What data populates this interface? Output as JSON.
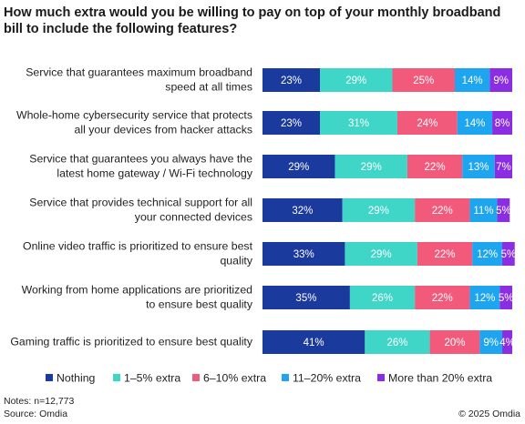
{
  "chart_data": {
    "type": "stacked_bar_horizontal",
    "title": [
      "How much extra would you be willing to pay on top of your monthly broadband",
      "bill to include the following features?"
    ],
    "categories": [
      [
        "Service that guarantees maximum broadband",
        "speed at all times"
      ],
      [
        "Whole-home cybersecurity service that protects",
        "all your devices from hacker attacks"
      ],
      [
        "Service that guarantees you always have the",
        "latest home gateway / Wi-Fi technology"
      ],
      [
        "Service that provides technical support for all",
        "your connected devices"
      ],
      [
        "Online video traffic is prioritized to ensure best",
        "quality"
      ],
      [
        "Working from home applications are prioritized",
        "to ensure best quality"
      ],
      [
        "Gaming traffic is prioritized to ensure best quality"
      ]
    ],
    "series": [
      {
        "name": "Nothing",
        "color": "#1b3a9e",
        "values": [
          23,
          23,
          29,
          32,
          33,
          35,
          41
        ],
        "value_labels": [
          "23%",
          "23%",
          "29%",
          "32%",
          "33%",
          "35%",
          "41%"
        ]
      },
      {
        "name": "1–5% extra",
        "color": "#3fd6c8",
        "values": [
          29,
          31,
          29,
          29,
          29,
          26,
          26
        ],
        "value_labels": [
          "29%",
          "31%",
          "29%",
          "29%",
          "29%",
          "26%",
          "26%"
        ]
      },
      {
        "name": "6–10% extra",
        "color": "#f15a7b",
        "values": [
          25,
          24,
          22,
          22,
          22,
          22,
          20
        ],
        "value_labels": [
          "25%",
          "24%",
          "22%",
          "22%",
          "22%",
          "22%",
          "20%"
        ]
      },
      {
        "name": "11–20% extra",
        "color": "#1ea5f0",
        "values": [
          14,
          14,
          13,
          11,
          12,
          12,
          9
        ],
        "value_labels": [
          "14%",
          "14%",
          "13%",
          "11%",
          "12%",
          "12%",
          "9%"
        ]
      },
      {
        "name": "More than 20% extra",
        "color": "#8b2ee3",
        "values": [
          9,
          8,
          7,
          5,
          5,
          5,
          4
        ],
        "value_labels": [
          "9%",
          "8%",
          "7%",
          "5%",
          "5%",
          "5%",
          "4%"
        ]
      }
    ],
    "xlim": [
      0,
      100
    ],
    "notes": "Notes: n=12,773",
    "source": "Source: Omdia",
    "copyright": "© 2025 Omdia"
  }
}
